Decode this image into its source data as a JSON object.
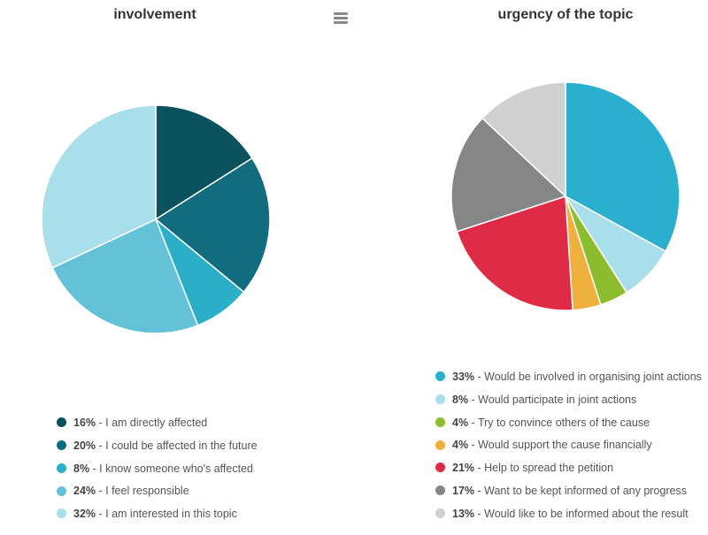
{
  "menu": {
    "icon": "hamburger-menu-icon"
  },
  "chart_data": [
    {
      "type": "pie",
      "title": "involvement",
      "slices": [
        {
          "label": "I am directly affected",
          "value": 16,
          "display": "16%",
          "color": "#0b525f"
        },
        {
          "label": "I could be affected in the future",
          "value": 20,
          "display": "20%",
          "color": "#116c7d"
        },
        {
          "label": "I know someone who's affected",
          "value": 8,
          "display": "8%",
          "color": "#2bafc9"
        },
        {
          "label": "I feel responsible",
          "value": 24,
          "display": "24%",
          "color": "#63c2d7"
        },
        {
          "label": "I am interested in this topic",
          "value": 32,
          "display": "32%",
          "color": "#a8dfea"
        }
      ]
    },
    {
      "type": "pie",
      "title": "urgency of the topic",
      "slices": [
        {
          "label": "Would be involved in organising joint actions",
          "value": 33,
          "display": "33%",
          "color": "#2bafce"
        },
        {
          "label": "Would participate in joint actions",
          "value": 8,
          "display": "8%",
          "color": "#a8dfea"
        },
        {
          "label": "Try to convince others of the cause",
          "value": 4,
          "display": "4%",
          "color": "#8bbd2f"
        },
        {
          "label": "Would support the cause financially",
          "value": 4,
          "display": "4%",
          "color": "#f0b03e"
        },
        {
          "label": "Help to spread the petition",
          "value": 21,
          "display": "21%",
          "color": "#df2b46"
        },
        {
          "label": "Want to be kept informed of any progress",
          "value": 17,
          "display": "17%",
          "color": "#868686"
        },
        {
          "label": "Would like to be informed about the result",
          "value": 13,
          "display": "13%",
          "color": "#d0d0d0"
        }
      ]
    }
  ]
}
